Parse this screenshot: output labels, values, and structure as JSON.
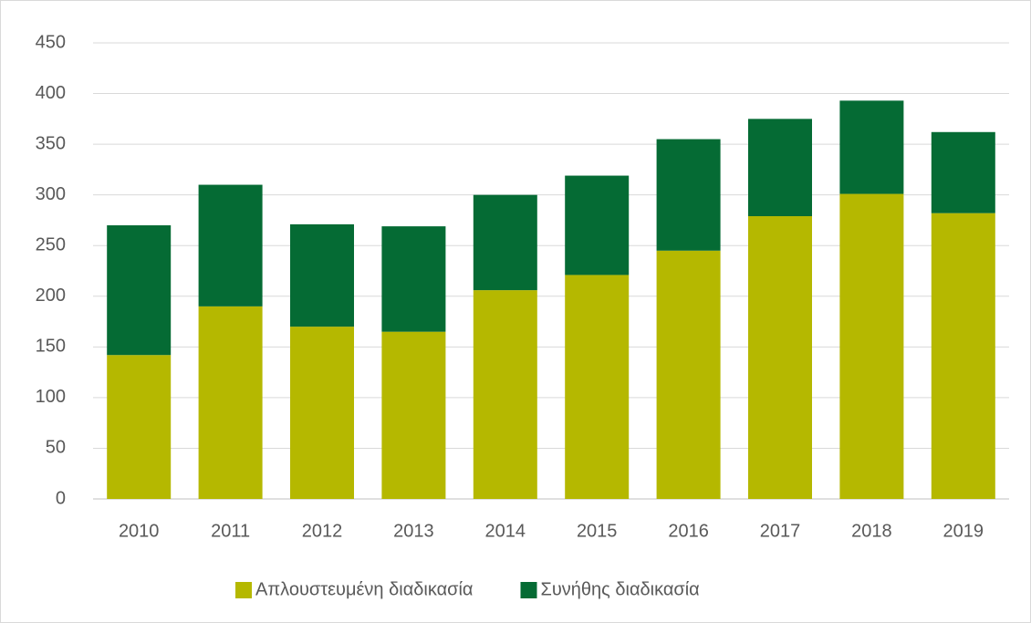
{
  "chart_data": {
    "type": "stacked_bar",
    "categories": [
      "2010",
      "2011",
      "2012",
      "2013",
      "2014",
      "2015",
      "2016",
      "2017",
      "2018",
      "2019"
    ],
    "series": [
      {
        "name": "Απλουστευμένη διαδικασία",
        "color": "#b5b800",
        "values": [
          142,
          190,
          170,
          165,
          206,
          221,
          245,
          279,
          301,
          282
        ]
      },
      {
        "name": "Συνήθης διαδικασία",
        "color": "#056b34",
        "values": [
          128,
          120,
          101,
          104,
          94,
          98,
          110,
          96,
          92,
          80
        ]
      }
    ],
    "ylim": [
      0,
      450
    ],
    "yticks": [
      0,
      50,
      100,
      150,
      200,
      250,
      300,
      350,
      400,
      450
    ],
    "grid": true,
    "legend": "bottom"
  }
}
